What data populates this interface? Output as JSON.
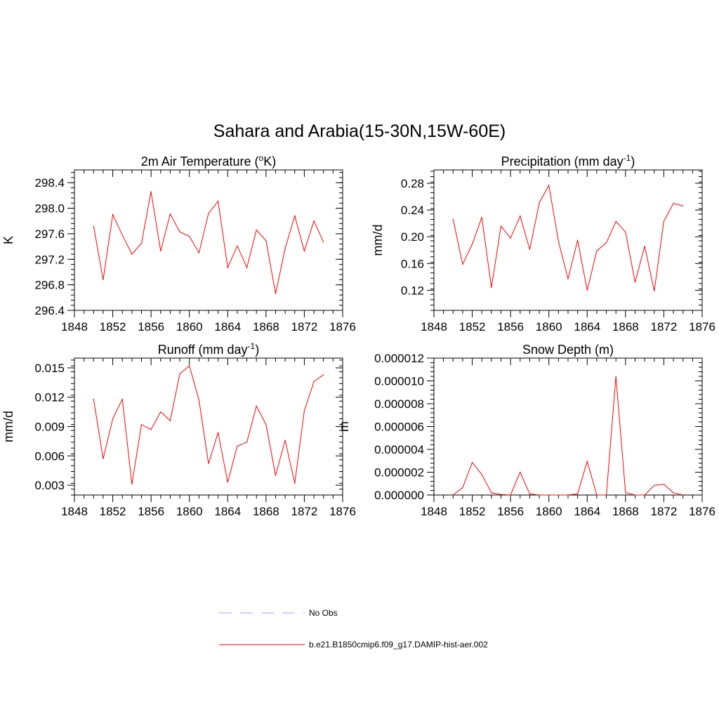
{
  "title": "Sahara and Arabia(15-30N,15W-60E)",
  "series_color": "#ff0000",
  "legend": [
    {
      "label": "No Obs",
      "style": "dashed",
      "color": "#a0a0ff"
    },
    {
      "label": "b.e21.B1850cmip6.f09_g17.DAMIP-hist-aer.002",
      "style": "solid",
      "color": "#ff0000"
    }
  ],
  "chart_data": [
    {
      "type": "line",
      "title_pre": "2m Air Temperature (",
      "title_sup": "o",
      "title_post": "K)",
      "ylabel": "K",
      "xlim": [
        1848,
        1876
      ],
      "x_ticks": [
        1848,
        1852,
        1856,
        1860,
        1864,
        1868,
        1872,
        1876
      ],
      "ylim": [
        296.4,
        298.6
      ],
      "y_ticks": [
        296.4,
        296.8,
        297.2,
        297.6,
        298.0,
        298.4
      ],
      "y_tick_labels": [
        "296.4",
        "296.8",
        "297.2",
        "297.6",
        "298.0",
        "298.4"
      ],
      "y_minor_step": 0.08,
      "x": [
        1850,
        1851,
        1852,
        1853,
        1854,
        1855,
        1856,
        1857,
        1858,
        1859,
        1860,
        1861,
        1862,
        1863,
        1864,
        1865,
        1866,
        1867,
        1868,
        1869,
        1870,
        1871,
        1872,
        1873,
        1874
      ],
      "values": [
        297.72,
        296.88,
        297.9,
        297.58,
        297.28,
        297.45,
        298.26,
        297.33,
        297.91,
        297.63,
        297.56,
        297.3,
        297.92,
        298.11,
        297.07,
        297.41,
        297.07,
        297.66,
        297.49,
        296.66,
        297.37,
        297.88,
        297.33,
        297.8,
        297.47
      ]
    },
    {
      "type": "line",
      "title_pre": "Precipitation (mm day",
      "title_sup": "-1",
      "title_post": ")",
      "ylabel": "mm/d",
      "xlim": [
        1848,
        1876
      ],
      "x_ticks": [
        1848,
        1852,
        1856,
        1860,
        1864,
        1868,
        1872,
        1876
      ],
      "ylim": [
        0.09,
        0.3
      ],
      "y_ticks": [
        0.12,
        0.16,
        0.2,
        0.24,
        0.28
      ],
      "y_tick_labels": [
        "0.12",
        "0.16",
        "0.20",
        "0.24",
        "0.28"
      ],
      "y_minor_step": 0.008,
      "x": [
        1850,
        1851,
        1852,
        1853,
        1854,
        1855,
        1856,
        1857,
        1858,
        1859,
        1860,
        1861,
        1862,
        1863,
        1864,
        1865,
        1866,
        1867,
        1868,
        1869,
        1870,
        1871,
        1872,
        1873,
        1874
      ],
      "values": [
        0.226,
        0.159,
        0.189,
        0.229,
        0.124,
        0.216,
        0.198,
        0.231,
        0.181,
        0.251,
        0.277,
        0.193,
        0.137,
        0.195,
        0.12,
        0.179,
        0.191,
        0.223,
        0.207,
        0.132,
        0.186,
        0.119,
        0.223,
        0.25,
        0.246
      ]
    },
    {
      "type": "line",
      "title_pre": "Runoff (mm day",
      "title_sup": "-1",
      "title_post": ")",
      "ylabel": "mm/d",
      "xlim": [
        1848,
        1876
      ],
      "x_ticks": [
        1848,
        1852,
        1856,
        1860,
        1864,
        1868,
        1872,
        1876
      ],
      "ylim": [
        0.002,
        0.016
      ],
      "y_ticks": [
        0.003,
        0.006,
        0.009,
        0.012,
        0.015
      ],
      "y_tick_labels": [
        "0.003",
        "0.006",
        "0.009",
        "0.012",
        "0.015"
      ],
      "y_minor_step": 0.0006,
      "x": [
        1850,
        1851,
        1852,
        1853,
        1854,
        1855,
        1856,
        1857,
        1858,
        1859,
        1860,
        1861,
        1862,
        1863,
        1864,
        1865,
        1866,
        1867,
        1868,
        1869,
        1870,
        1871,
        1872,
        1873,
        1874
      ],
      "values": [
        0.0118,
        0.0057,
        0.0098,
        0.0118,
        0.0031,
        0.0092,
        0.0087,
        0.0105,
        0.0096,
        0.0144,
        0.0152,
        0.0117,
        0.0052,
        0.0084,
        0.0033,
        0.007,
        0.0074,
        0.0111,
        0.0092,
        0.004,
        0.0076,
        0.0032,
        0.0106,
        0.0136,
        0.0143
      ]
    },
    {
      "type": "line",
      "title_pre": "Snow Depth (m)",
      "title_sup": "",
      "title_post": "",
      "ylabel": "m",
      "xlim": [
        1848,
        1876
      ],
      "x_ticks": [
        1848,
        1852,
        1856,
        1860,
        1864,
        1868,
        1872,
        1876
      ],
      "ylim": [
        0.0,
        1.2e-05
      ],
      "y_ticks": [
        0.0,
        2e-06,
        4e-06,
        6e-06,
        8e-06,
        1e-05,
        1.2e-05
      ],
      "y_tick_labels": [
        "0.000000",
        "0.000002",
        "0.000004",
        "0.000006",
        "0.000008",
        "0.000010",
        "0.000012"
      ],
      "y_minor_step": 4e-07,
      "x": [
        1850,
        1851,
        1852,
        1853,
        1854,
        1855,
        1856,
        1857,
        1858,
        1859,
        1860,
        1861,
        1862,
        1863,
        1864,
        1865,
        1866,
        1867,
        1868,
        1869,
        1870,
        1871,
        1872,
        1873,
        1874
      ],
      "values": [
        0.0,
        6.5e-07,
        2.85e-06,
        1.8e-06,
        2e-07,
        5e-08,
        0.0,
        2e-06,
        1e-07,
        0.0,
        0.0,
        0.0,
        0.0,
        1e-07,
        2.95e-06,
        0.0,
        0.0,
        1.04e-05,
        2e-07,
        0.0,
        0.0,
        8.5e-07,
        9.5e-07,
        2e-07,
        0.0
      ]
    }
  ]
}
